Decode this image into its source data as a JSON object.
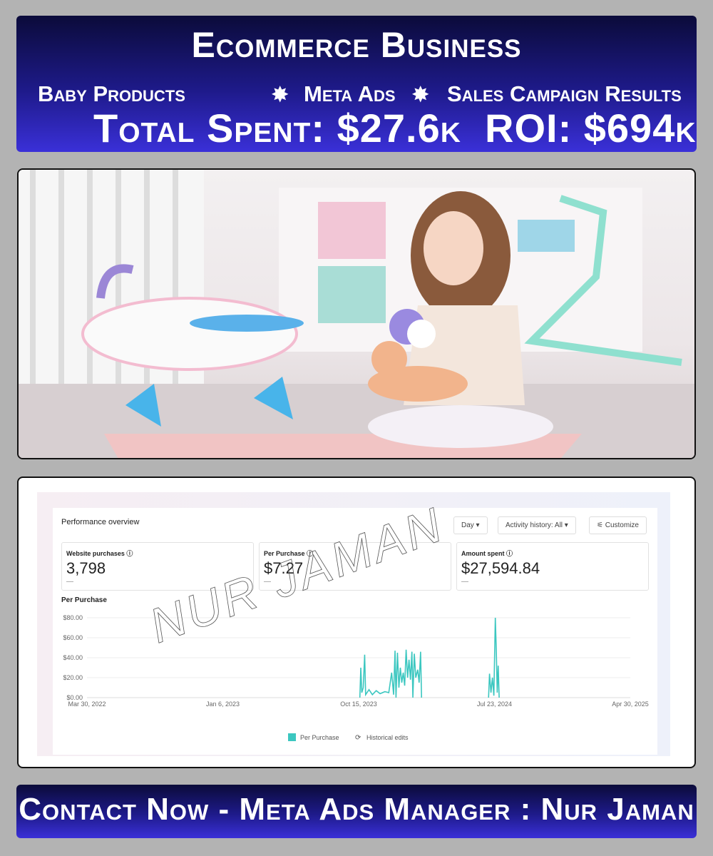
{
  "header": {
    "title": "Ecommerce Business",
    "subtitles": [
      "Baby Products",
      "Meta Ads",
      "Sales Campaign Results"
    ],
    "separator_icon": "star-burst-icon",
    "total_line": "Total Spent: $27.6k  ROI: $694k"
  },
  "photo": {
    "description_icon": "photo-girl-playing-with-baby-doll-bath"
  },
  "dashboard": {
    "title": "Performance overview",
    "controls": {
      "day": "Day ▾",
      "activity": "Activity history: All ▾",
      "customize": "Customize"
    },
    "cards": [
      {
        "label": "Website purchases",
        "value": "3,798",
        "delta": "—"
      },
      {
        "label": "Per Purchase",
        "value": "$7.27",
        "delta": "—"
      },
      {
        "label": "Amount spent",
        "value": "$27,594.84",
        "delta": "—"
      }
    ],
    "watermark": "NUR JAMAN"
  },
  "chart_data": {
    "type": "line",
    "title": "Per Purchase",
    "x_ticks": [
      "Mar 30, 2022",
      "Jan 6, 2023",
      "Oct 15, 2023",
      "Jul 23, 2024",
      "Apr 30, 2025"
    ],
    "xlim": [
      "2022-03-30",
      "2025-04-30"
    ],
    "y_ticks": [
      "$0.00",
      "$20.00",
      "$40.00",
      "$60.00",
      "$80.00"
    ],
    "ylim": [
      0,
      80
    ],
    "grid": true,
    "legend": [
      "Per Purchase",
      "Historical edits"
    ],
    "legend_position": "bottom",
    "series": [
      {
        "name": "Per Purchase",
        "color": "#3cc7c0",
        "points": [
          [
            "2023-10-17",
            0
          ],
          [
            "2023-10-19",
            30
          ],
          [
            "2023-10-21",
            5
          ],
          [
            "2023-10-24",
            10
          ],
          [
            "2023-10-27",
            43
          ],
          [
            "2023-10-29",
            3
          ],
          [
            "2023-11-05",
            8
          ],
          [
            "2023-11-12",
            3
          ],
          [
            "2023-11-20",
            7
          ],
          [
            "2023-11-28",
            4
          ],
          [
            "2023-12-08",
            6
          ],
          [
            "2023-12-16",
            5
          ],
          [
            "2023-12-22",
            25
          ],
          [
            "2023-12-26",
            3
          ],
          [
            "2023-12-29",
            47
          ],
          [
            "2023-12-31",
            0
          ],
          [
            "2024-01-03",
            45
          ],
          [
            "2024-01-06",
            10
          ],
          [
            "2024-01-09",
            30
          ],
          [
            "2024-01-12",
            15
          ],
          [
            "2024-01-15",
            25
          ],
          [
            "2024-01-18",
            12
          ],
          [
            "2024-01-21",
            48
          ],
          [
            "2024-01-24",
            20
          ],
          [
            "2024-01-27",
            38
          ],
          [
            "2024-01-30",
            18
          ],
          [
            "2024-02-02",
            46
          ],
          [
            "2024-02-04",
            0
          ],
          [
            "2024-02-07",
            44
          ],
          [
            "2024-02-10",
            20
          ],
          [
            "2024-02-14",
            28
          ],
          [
            "2024-02-17",
            15
          ],
          [
            "2024-02-20",
            46
          ],
          [
            "2024-02-22",
            0
          ],
          [
            "2024-07-10",
            0
          ],
          [
            "2024-07-12",
            24
          ],
          [
            "2024-07-15",
            5
          ],
          [
            "2024-07-18",
            20
          ],
          [
            "2024-07-21",
            2
          ],
          [
            "2024-07-24",
            80
          ],
          [
            "2024-07-26",
            48
          ],
          [
            "2024-07-28",
            5
          ],
          [
            "2024-07-30",
            32
          ],
          [
            "2024-08-01",
            0
          ]
        ]
      }
    ]
  },
  "footer": {
    "text": "Contact Now - Meta Ads Manager : Nur Jaman"
  }
}
